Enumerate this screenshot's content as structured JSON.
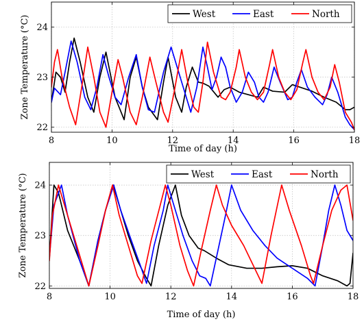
{
  "chart_data": [
    {
      "type": "line",
      "xlabel": "Time of day (h)",
      "ylabel": "Zone Temperature (°C)",
      "xlim": [
        8,
        18
      ],
      "ylim": [
        21.9,
        24.5
      ],
      "xticks": [
        "8",
        "10",
        "12",
        "14",
        "16",
        "18"
      ],
      "xtick_values": [
        8,
        10,
        12,
        14,
        16,
        18
      ],
      "yticks": [
        "22",
        "23",
        "24"
      ],
      "ytick_values": [
        22,
        23,
        24
      ],
      "grid": true,
      "legend": "top-right",
      "series": [
        {
          "name": "West",
          "color": "#000000",
          "points": [
            [
              8,
              22.5
            ],
            [
              8.15,
              23.1
            ],
            [
              8.3,
              23.0
            ],
            [
              8.45,
              22.7
            ],
            [
              8.6,
              23.3
            ],
            [
              8.75,
              23.78
            ],
            [
              8.95,
              23.3
            ],
            [
              9.2,
              22.6
            ],
            [
              9.4,
              22.3
            ],
            [
              9.6,
              23.0
            ],
            [
              9.8,
              23.5
            ],
            [
              9.9,
              23.2
            ],
            [
              10.1,
              22.6
            ],
            [
              10.4,
              22.15
            ],
            [
              10.6,
              23.0
            ],
            [
              10.8,
              23.4
            ],
            [
              11.0,
              22.8
            ],
            [
              11.2,
              22.4
            ],
            [
              11.5,
              22.15
            ],
            [
              11.7,
              22.9
            ],
            [
              11.85,
              23.4
            ],
            [
              12.1,
              22.6
            ],
            [
              12.3,
              22.3
            ],
            [
              12.45,
              22.8
            ],
            [
              12.65,
              23.2
            ],
            [
              12.85,
              22.9
            ],
            [
              13.0,
              22.88
            ],
            [
              13.2,
              22.82
            ],
            [
              13.5,
              22.6
            ],
            [
              13.7,
              22.75
            ],
            [
              13.9,
              22.8
            ],
            [
              14.2,
              22.7
            ],
            [
              14.5,
              22.65
            ],
            [
              14.8,
              22.6
            ],
            [
              15.0,
              22.8
            ],
            [
              15.3,
              22.72
            ],
            [
              15.7,
              22.7
            ],
            [
              15.95,
              22.85
            ],
            [
              16.2,
              22.8
            ],
            [
              16.6,
              22.72
            ],
            [
              17.0,
              22.6
            ],
            [
              17.4,
              22.5
            ],
            [
              17.7,
              22.35
            ],
            [
              17.85,
              22.35
            ],
            [
              18,
              22.4
            ]
          ]
        },
        {
          "name": "East",
          "color": "#0000ff",
          "points": [
            [
              8,
              22.5
            ],
            [
              8.1,
              22.78
            ],
            [
              8.3,
              22.65
            ],
            [
              8.45,
              23.1
            ],
            [
              8.65,
              23.72
            ],
            [
              8.85,
              23.3
            ],
            [
              9.1,
              22.6
            ],
            [
              9.3,
              22.35
            ],
            [
              9.5,
              22.8
            ],
            [
              9.7,
              23.45
            ],
            [
              9.9,
              23.0
            ],
            [
              10.1,
              22.6
            ],
            [
              10.3,
              22.45
            ],
            [
              10.55,
              23.0
            ],
            [
              10.8,
              23.45
            ],
            [
              11.0,
              22.8
            ],
            [
              11.2,
              22.35
            ],
            [
              11.4,
              22.3
            ],
            [
              11.7,
              23.1
            ],
            [
              11.95,
              23.6
            ],
            [
              12.15,
              23.2
            ],
            [
              12.4,
              22.7
            ],
            [
              12.6,
              22.3
            ],
            [
              12.8,
              22.8
            ],
            [
              13.0,
              23.6
            ],
            [
              13.15,
              23.2
            ],
            [
              13.3,
              22.75
            ],
            [
              13.45,
              23.0
            ],
            [
              13.6,
              23.4
            ],
            [
              13.75,
              23.2
            ],
            [
              13.9,
              22.8
            ],
            [
              14.1,
              22.5
            ],
            [
              14.3,
              22.7
            ],
            [
              14.5,
              23.1
            ],
            [
              14.7,
              22.9
            ],
            [
              14.85,
              22.6
            ],
            [
              15.0,
              22.5
            ],
            [
              15.15,
              22.7
            ],
            [
              15.35,
              23.2
            ],
            [
              15.55,
              22.9
            ],
            [
              15.8,
              22.55
            ],
            [
              15.95,
              22.6
            ],
            [
              16.1,
              22.9
            ],
            [
              16.25,
              23.15
            ],
            [
              16.45,
              22.8
            ],
            [
              16.7,
              22.6
            ],
            [
              16.95,
              22.45
            ],
            [
              17.1,
              22.65
            ],
            [
              17.25,
              23.0
            ],
            [
              17.45,
              22.7
            ],
            [
              17.7,
              22.2
            ],
            [
              17.85,
              22.05
            ],
            [
              18,
              21.95
            ]
          ]
        },
        {
          "name": "North",
          "color": "#ff0000",
          "points": [
            [
              8,
              22.8
            ],
            [
              8.1,
              23.3
            ],
            [
              8.2,
              23.55
            ],
            [
              8.35,
              23.0
            ],
            [
              8.6,
              22.4
            ],
            [
              8.8,
              22.05
            ],
            [
              9.0,
              22.8
            ],
            [
              9.2,
              23.6
            ],
            [
              9.4,
              23.0
            ],
            [
              9.6,
              22.3
            ],
            [
              9.8,
              22.0
            ],
            [
              10.0,
              22.7
            ],
            [
              10.2,
              23.35
            ],
            [
              10.35,
              23.0
            ],
            [
              10.6,
              22.3
            ],
            [
              10.8,
              22.05
            ],
            [
              11.0,
              22.6
            ],
            [
              11.25,
              23.4
            ],
            [
              11.45,
              22.9
            ],
            [
              11.7,
              22.3
            ],
            [
              11.85,
              22.1
            ],
            [
              12.05,
              22.7
            ],
            [
              12.3,
              23.55
            ],
            [
              12.5,
              22.9
            ],
            [
              12.7,
              22.4
            ],
            [
              12.85,
              22.3
            ],
            [
              13.0,
              22.9
            ],
            [
              13.15,
              23.7
            ],
            [
              13.35,
              23.1
            ],
            [
              13.6,
              22.6
            ],
            [
              13.75,
              22.55
            ],
            [
              13.9,
              22.7
            ],
            [
              14.1,
              23.2
            ],
            [
              14.2,
              23.55
            ],
            [
              14.4,
              23.0
            ],
            [
              14.6,
              22.7
            ],
            [
              14.8,
              22.55
            ],
            [
              15.0,
              22.7
            ],
            [
              15.2,
              23.25
            ],
            [
              15.3,
              23.55
            ],
            [
              15.5,
              23.0
            ],
            [
              15.7,
              22.7
            ],
            [
              15.9,
              22.55
            ],
            [
              16.1,
              22.75
            ],
            [
              16.3,
              23.3
            ],
            [
              16.4,
              23.55
            ],
            [
              16.6,
              23.0
            ],
            [
              16.8,
              22.7
            ],
            [
              17.0,
              22.55
            ],
            [
              17.2,
              22.8
            ],
            [
              17.35,
              23.25
            ],
            [
              17.5,
              22.9
            ],
            [
              17.7,
              22.3
            ],
            [
              17.9,
              22.1
            ],
            [
              18,
              21.95
            ]
          ]
        }
      ]
    },
    {
      "type": "line",
      "xlabel": "Time of day (h)",
      "ylabel": "Zone Temperature (°C)",
      "xlim": [
        8,
        18
      ],
      "ylim": [
        21.95,
        24.45
      ],
      "xticks": [
        "8",
        "10",
        "12",
        "14",
        "16",
        "18"
      ],
      "xtick_values": [
        8,
        10,
        12,
        14,
        16,
        18
      ],
      "yticks": [
        "22",
        "23",
        "24"
      ],
      "ytick_values": [
        22,
        23,
        24
      ],
      "grid": true,
      "legend": "top-right",
      "series": [
        {
          "name": "West",
          "color": "#000000",
          "points": [
            [
              8,
              22.55
            ],
            [
              8.15,
              24.0
            ],
            [
              8.3,
              23.85
            ],
            [
              8.6,
              23.1
            ],
            [
              9.0,
              22.5
            ],
            [
              9.3,
              22.0
            ],
            [
              9.6,
              22.9
            ],
            [
              9.85,
              23.5
            ],
            [
              10.1,
              24.0
            ],
            [
              10.3,
              23.6
            ],
            [
              10.6,
              23.0
            ],
            [
              10.9,
              22.5
            ],
            [
              11.2,
              22.15
            ],
            [
              11.35,
              22.0
            ],
            [
              11.6,
              22.8
            ],
            [
              11.9,
              23.6
            ],
            [
              12.15,
              24.0
            ],
            [
              12.35,
              23.4
            ],
            [
              12.6,
              23.0
            ],
            [
              12.9,
              22.75
            ],
            [
              13.1,
              22.7
            ],
            [
              13.5,
              22.55
            ],
            [
              13.9,
              22.42
            ],
            [
              14.5,
              22.35
            ],
            [
              15.0,
              22.35
            ],
            [
              15.5,
              22.38
            ],
            [
              16.0,
              22.4
            ],
            [
              16.5,
              22.35
            ],
            [
              17.0,
              22.2
            ],
            [
              17.5,
              22.1
            ],
            [
              17.8,
              22.0
            ],
            [
              17.9,
              22.05
            ],
            [
              18,
              22.65
            ]
          ]
        },
        {
          "name": "East",
          "color": "#0000ff",
          "points": [
            [
              8,
              22.55
            ],
            [
              8.15,
              23.6
            ],
            [
              8.4,
              24.0
            ],
            [
              8.6,
              23.4
            ],
            [
              9.0,
              22.5
            ],
            [
              9.3,
              22.0
            ],
            [
              9.6,
              22.9
            ],
            [
              9.85,
              23.5
            ],
            [
              10.12,
              24.0
            ],
            [
              10.35,
              23.5
            ],
            [
              10.7,
              22.9
            ],
            [
              11.0,
              22.4
            ],
            [
              11.2,
              22.05
            ],
            [
              11.45,
              22.8
            ],
            [
              11.75,
              23.5
            ],
            [
              11.9,
              24.0
            ],
            [
              12.1,
              23.6
            ],
            [
              12.4,
              23.0
            ],
            [
              12.7,
              22.5
            ],
            [
              12.95,
              22.2
            ],
            [
              13.15,
              22.15
            ],
            [
              13.3,
              22.0
            ],
            [
              13.55,
              22.7
            ],
            [
              13.8,
              23.4
            ],
            [
              14.0,
              24.0
            ],
            [
              14.3,
              23.5
            ],
            [
              14.7,
              23.1
            ],
            [
              15.1,
              22.8
            ],
            [
              15.5,
              22.55
            ],
            [
              16.0,
              22.35
            ],
            [
              16.5,
              22.15
            ],
            [
              16.75,
              22.0
            ],
            [
              17.0,
              22.8
            ],
            [
              17.2,
              23.5
            ],
            [
              17.4,
              24.0
            ],
            [
              17.6,
              23.6
            ],
            [
              17.8,
              23.1
            ],
            [
              18,
              22.9
            ]
          ]
        },
        {
          "name": "North",
          "color": "#ff0000",
          "points": [
            [
              8,
              22.5
            ],
            [
              8.1,
              23.4
            ],
            [
              8.3,
              24.0
            ],
            [
              8.5,
              23.6
            ],
            [
              8.9,
              22.8
            ],
            [
              9.3,
              22.0
            ],
            [
              9.6,
              22.8
            ],
            [
              9.85,
              23.5
            ],
            [
              10.08,
              24.0
            ],
            [
              10.3,
              23.4
            ],
            [
              10.6,
              22.8
            ],
            [
              10.9,
              22.2
            ],
            [
              11.05,
              22.05
            ],
            [
              11.35,
              22.9
            ],
            [
              11.65,
              23.6
            ],
            [
              11.82,
              24.0
            ],
            [
              12.0,
              23.6
            ],
            [
              12.3,
              22.8
            ],
            [
              12.55,
              22.3
            ],
            [
              12.75,
              22.0
            ],
            [
              13.0,
              22.7
            ],
            [
              13.3,
              23.5
            ],
            [
              13.5,
              24.0
            ],
            [
              13.7,
              23.6
            ],
            [
              14.0,
              23.2
            ],
            [
              14.4,
              22.8
            ],
            [
              14.8,
              22.3
            ],
            [
              15.0,
              22.05
            ],
            [
              15.3,
              23.0
            ],
            [
              15.65,
              24.0
            ],
            [
              15.9,
              23.5
            ],
            [
              16.3,
              22.8
            ],
            [
              16.6,
              22.2
            ],
            [
              16.7,
              22.05
            ],
            [
              17.0,
              22.8
            ],
            [
              17.3,
              23.5
            ],
            [
              17.6,
              23.9
            ],
            [
              17.8,
              24.0
            ],
            [
              18,
              23.3
            ]
          ]
        }
      ]
    }
  ]
}
